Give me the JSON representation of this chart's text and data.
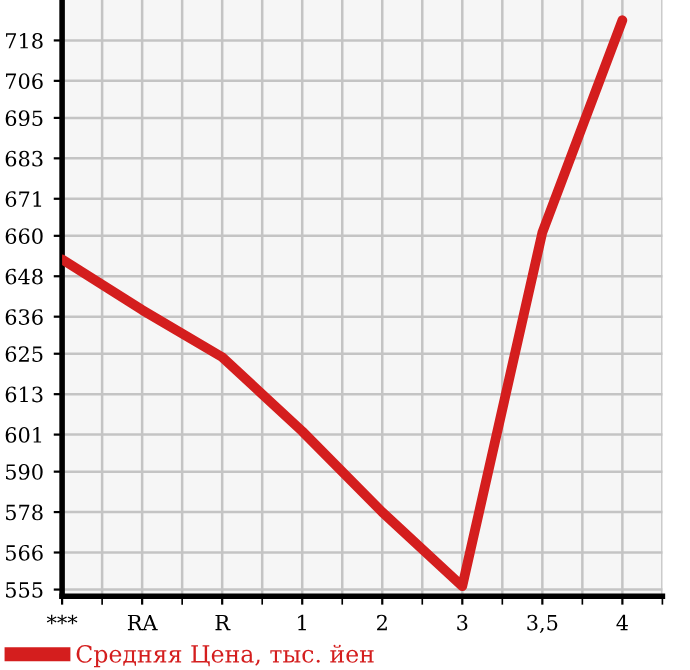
{
  "chart_data": {
    "type": "line",
    "categories": [
      "***",
      "RA",
      "R",
      "1",
      "2",
      "3",
      "3,5",
      "4"
    ],
    "series": [
      {
        "name": "Средняя Цена, тыс. йен",
        "color": "#d41e1e",
        "values": [
          653,
          638,
          624,
          602,
          578,
          556,
          661,
          724
        ]
      }
    ],
    "ylim": [
      553,
      730
    ],
    "yticks": [
      555,
      566,
      578,
      590,
      601,
      613,
      625,
      636,
      648,
      660,
      671,
      683,
      695,
      706,
      718
    ],
    "grid": true,
    "legend": "bottom left",
    "marker": "none",
    "line_style": "solid"
  }
}
